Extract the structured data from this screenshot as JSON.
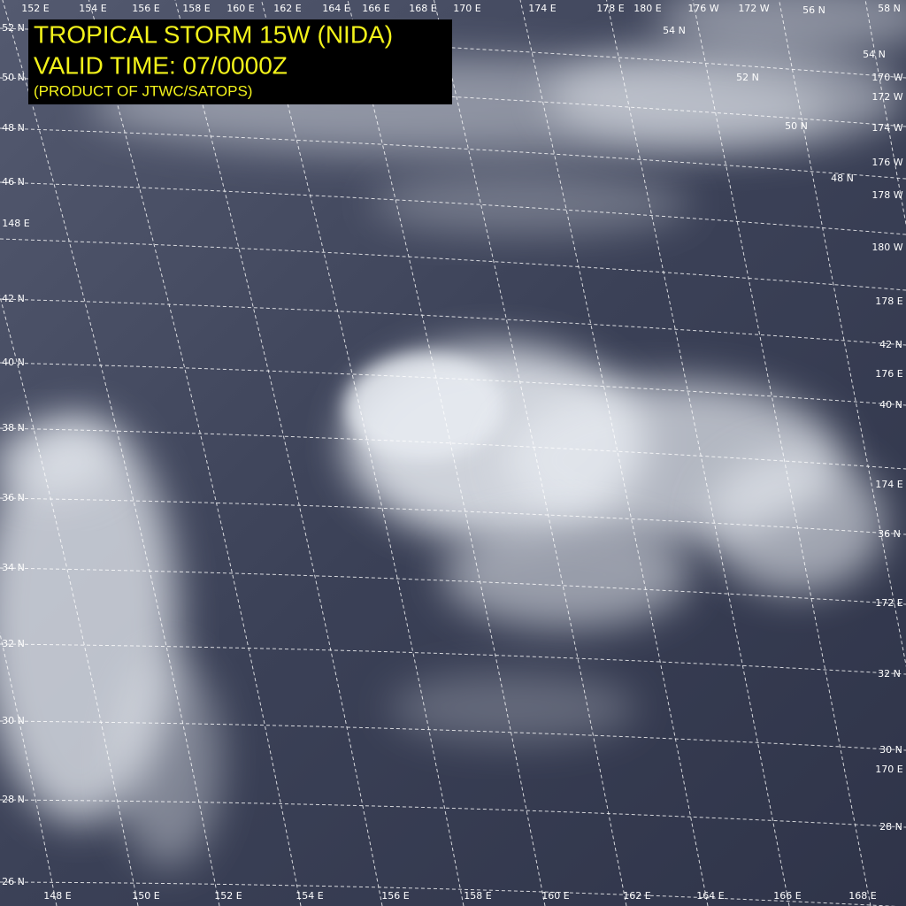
{
  "title_box": {
    "lines": [
      "TROPICAL STORM 15W (NIDA)",
      "VALID TIME: 07/0000Z",
      "(PRODUCT OF JTWC/SATOPS)"
    ]
  },
  "grid_labels": [
    "152 E",
    "154 E",
    "156 E",
    "158 E",
    "160 E",
    "162 E",
    "164 E",
    "166 E",
    "168 E",
    "170 E",
    "174 E",
    "178 E",
    "180 E",
    "176 W",
    "172 W",
    "56 N",
    "58 N",
    "52 N",
    "50 N",
    "48 N",
    "46 N",
    "148 E",
    "42 N",
    "40 N",
    "38 N",
    "36 N",
    "34 N",
    "32 N",
    "30 N",
    "28 N",
    "26 N",
    "148 E",
    "150 E",
    "152 E",
    "154 E",
    "156 E",
    "158 E",
    "160 E",
    "162 E",
    "164 E",
    "166 E",
    "168 E",
    "54 N",
    "54 N",
    "170 W",
    "52 N",
    "172 W",
    "174 W",
    "50 N",
    "176 W",
    "48 N",
    "178 W",
    "180 W",
    "178 E",
    "42 N",
    "176 E",
    "40 N",
    "174 E",
    "36 N",
    "172 E",
    "32 N",
    "30 N",
    "170 E",
    "28 N"
  ]
}
